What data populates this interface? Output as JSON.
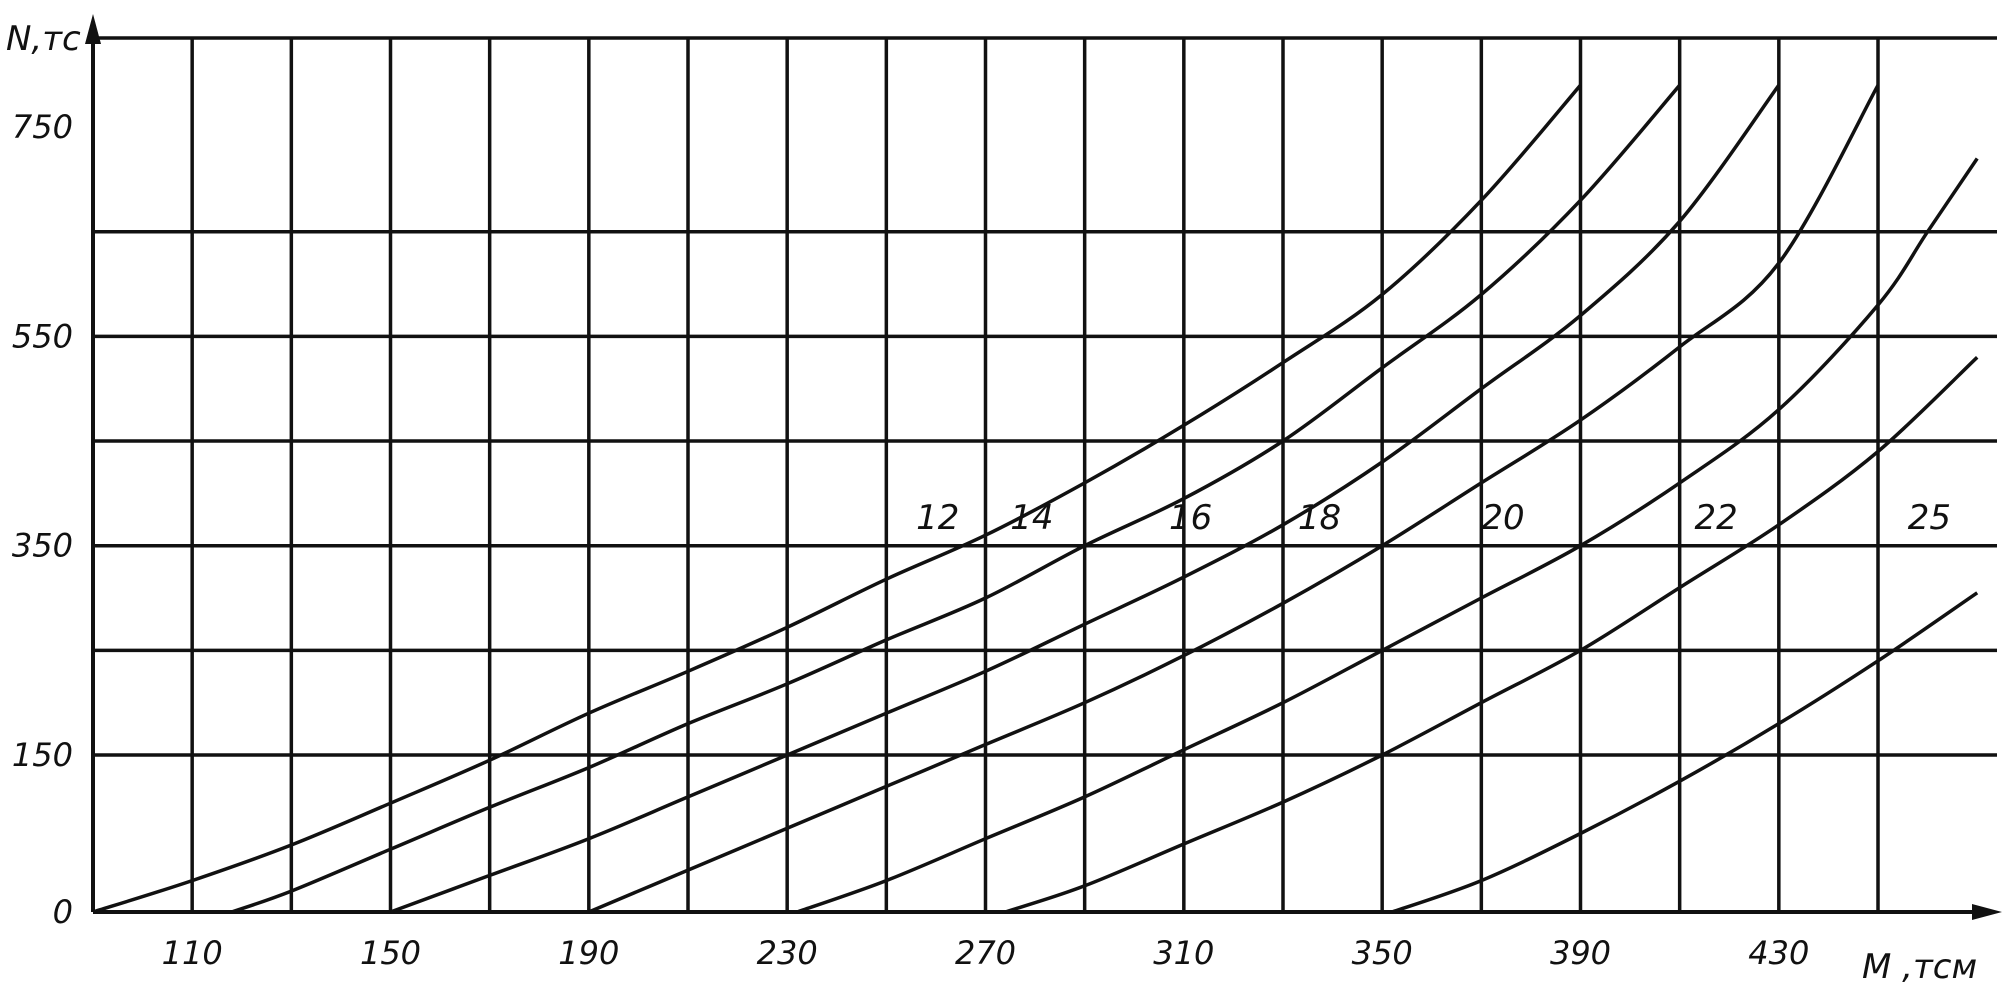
{
  "chart_data": {
    "type": "line",
    "title": "",
    "xlabel": "M ,тсм",
    "ylabel": "N,тс",
    "xlim": [
      90,
      474
    ],
    "ylim": [
      0,
      816
    ],
    "x_ticks": [
      110,
      150,
      190,
      230,
      270,
      310,
      350,
      390,
      430
    ],
    "x_tick_labels": [
      "110",
      "150",
      "190",
      "230",
      "270",
      "310",
      "350",
      "390",
      "430"
    ],
    "x_grid": [
      90,
      110,
      130,
      150,
      170,
      190,
      210,
      230,
      250,
      270,
      290,
      310,
      330,
      350,
      370,
      390,
      410,
      430,
      450
    ],
    "y_ticks": [
      0,
      150,
      350,
      550,
      750
    ],
    "y_tick_labels": [
      "0",
      "150",
      "350",
      "550",
      "750"
    ],
    "y_grid": [
      150,
      250,
      350,
      450,
      550,
      650,
      850
    ],
    "grid": true,
    "series": [
      {
        "name": "12",
        "x": [
          90,
          110,
          130,
          150,
          170,
          190,
          210,
          230,
          250,
          270,
          290,
          310,
          330,
          350,
          370,
          390
        ],
        "y": [
          0,
          30,
          64,
          104,
          145,
          190,
          230,
          272,
          318,
          360,
          410,
          465,
          525,
          590,
          680,
          790
        ]
      },
      {
        "name": "14",
        "x": [
          118,
          130,
          150,
          170,
          190,
          210,
          230,
          250,
          270,
          290,
          310,
          330,
          350,
          370,
          390,
          410
        ],
        "y": [
          0,
          20,
          60,
          100,
          138,
          180,
          218,
          260,
          300,
          350,
          395,
          450,
          520,
          590,
          680,
          790
        ]
      },
      {
        "name": "16",
        "x": [
          150,
          170,
          190,
          210,
          230,
          250,
          270,
          290,
          310,
          330,
          350,
          370,
          390,
          410,
          430
        ],
        "y": [
          0,
          35,
          70,
          110,
          150,
          190,
          230,
          275,
          320,
          370,
          430,
          500,
          570,
          660,
          790
        ]
      },
      {
        "name": "18",
        "x": [
          190,
          210,
          230,
          250,
          270,
          290,
          310,
          330,
          350,
          370,
          390,
          410,
          430,
          450
        ],
        "y": [
          0,
          40,
          80,
          120,
          160,
          200,
          245,
          295,
          350,
          410,
          470,
          540,
          620,
          790
        ]
      },
      {
        "name": "20",
        "x": [
          232,
          250,
          270,
          290,
          310,
          330,
          350,
          370,
          390,
          410,
          430,
          450,
          460,
          470
        ],
        "y": [
          0,
          30,
          70,
          110,
          155,
          200,
          250,
          300,
          350,
          410,
          480,
          580,
          650,
          720
        ]
      },
      {
        "name": "22",
        "x": [
          274,
          290,
          310,
          330,
          350,
          370,
          390,
          410,
          430,
          450,
          470
        ],
        "y": [
          0,
          25,
          65,
          105,
          150,
          200,
          250,
          310,
          370,
          440,
          530
        ]
      },
      {
        "name": "25",
        "x": [
          352,
          370,
          390,
          410,
          430,
          450,
          470
        ],
        "y": [
          0,
          30,
          75,
          125,
          180,
          240,
          305
        ]
      }
    ],
    "series_labels": [
      {
        "text": "12",
        "x": 256,
        "y": 360
      },
      {
        "text": "14",
        "x": 275,
        "y": 360
      },
      {
        "text": "16",
        "x": 307,
        "y": 360
      },
      {
        "text": "18",
        "x": 333,
        "y": 360
      },
      {
        "text": "20",
        "x": 370,
        "y": 360
      },
      {
        "text": "22",
        "x": 413,
        "y": 360
      },
      {
        "text": "25",
        "x": 456,
        "y": 360
      }
    ]
  }
}
